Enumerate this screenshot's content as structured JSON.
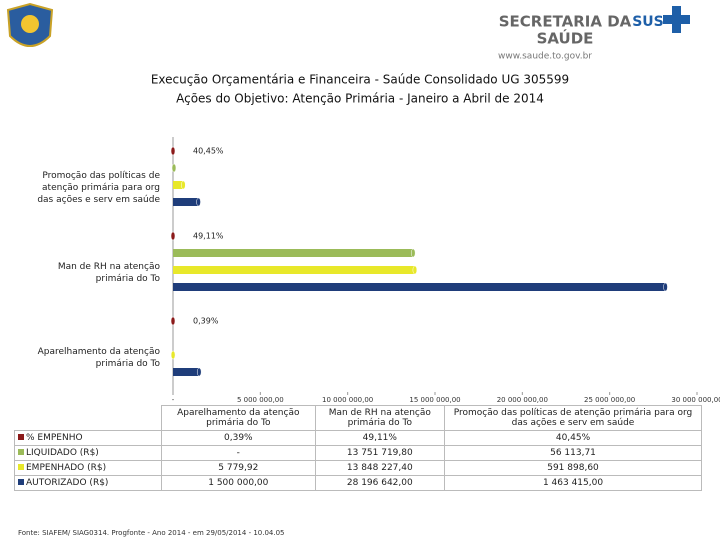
{
  "header": {
    "org_line1": "SECRETARIA DA",
    "org_line2": "SAÚDE",
    "url": "www.saude.to.gov.br",
    "sus": "SUS"
  },
  "chart_data": {
    "type": "barh",
    "title": "Execução Orçamentária e Financeira - Saúde Consolidado UG 305599",
    "subtitle": "Ações do Objetivo: Atenção Primária - Janeiro a Abril de 2014",
    "categories": [
      "Aparelhamento da atenção primária do To",
      "Man de RH na atenção primária do To",
      "Promoção das políticas de atenção primária para org das ações e serv em saúde"
    ],
    "series": [
      {
        "name": "% EMPENHO",
        "color": "#8b1a1a",
        "values": [
          0.39,
          49.11,
          40.45
        ],
        "value_labels": [
          "0,39%",
          "49,11%",
          "40,45%"
        ]
      },
      {
        "name": "LIQUIDADO (R$)",
        "color": "#9bbb59",
        "values": [
          null,
          13751719.8,
          56113.71
        ],
        "value_labels": [
          "-",
          "13 751 719,80",
          "56 113,71"
        ]
      },
      {
        "name": "EMPENHADO (R$)",
        "color": "#e8e82a",
        "values": [
          5779.92,
          13848227.4,
          591898.6
        ],
        "value_labels": [
          "5 779,92",
          "13 848 227,40",
          "591 898,60"
        ]
      },
      {
        "name": "AUTORIZADO (R$)",
        "color": "#1f3d7a",
        "values": [
          1500000.0,
          28196642.0,
          1463415.0
        ],
        "value_labels": [
          "1 500 000,00",
          "28 196 642,00",
          "1 463 415,00"
        ]
      }
    ],
    "xlim": [
      0,
      30000000
    ],
    "xticks": [
      {
        "value": 0,
        "label": "-"
      },
      {
        "value": 5000000,
        "label": "5 000 000,00"
      },
      {
        "value": 10000000,
        "label": "10 000 000,00"
      },
      {
        "value": 15000000,
        "label": "15 000 000,00"
      },
      {
        "value": 20000000,
        "label": "20 000 000,00"
      },
      {
        "value": 25000000,
        "label": "25 000 000,00"
      },
      {
        "value": 30000000,
        "label": "30 000 000,00"
      }
    ],
    "source": "Fonte: SIAFEM/ SIAG0314. Progfonte - Ano 2014 - em 29/05/2014 - 10.04.05"
  }
}
